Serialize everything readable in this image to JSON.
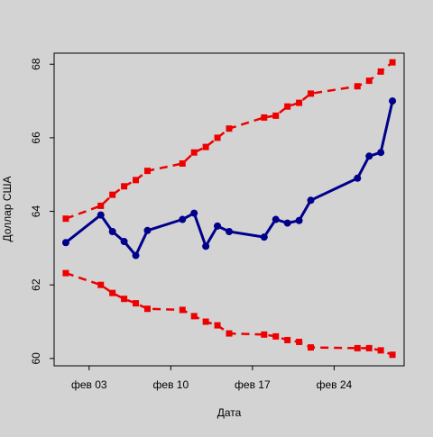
{
  "chart_data": {
    "type": "line",
    "title": "",
    "xlabel": "Дата",
    "ylabel": "Доллар США",
    "x_ticks": [
      "2019-02-03",
      "2019-02-10",
      "2019-02-17",
      "2019-02-24"
    ],
    "x_tick_labels": [
      "фев 03",
      "фев 10",
      "фев 17",
      "фев 24"
    ],
    "xlim": [
      "2019-01-31",
      "2019-03-02"
    ],
    "y_ticks": [
      60,
      62,
      64,
      66,
      68
    ],
    "ylim": [
      59.8,
      68.3
    ],
    "grid": false,
    "x": [
      "2019-02-01",
      "2019-02-04",
      "2019-02-05",
      "2019-02-06",
      "2019-02-07",
      "2019-02-08",
      "2019-02-11",
      "2019-02-12",
      "2019-02-13",
      "2019-02-14",
      "2019-02-15",
      "2019-02-18",
      "2019-02-19",
      "2019-02-20",
      "2019-02-21",
      "2019-02-22",
      "2019-02-26",
      "2019-02-27",
      "2019-02-28",
      "2019-03-01"
    ],
    "series": [
      {
        "role": "main",
        "color": "#00008b",
        "style": "solid",
        "values": [
          63.15,
          63.9,
          63.45,
          63.18,
          62.8,
          63.48,
          63.78,
          63.95,
          63.05,
          63.6,
          63.45,
          63.3,
          63.78,
          63.68,
          63.75,
          64.3,
          64.9,
          65.5,
          65.6,
          67.0
        ]
      },
      {
        "role": "upper",
        "color": "#ee0000",
        "style": "dashed",
        "values": [
          63.8,
          64.15,
          64.45,
          64.68,
          64.85,
          65.1,
          65.3,
          65.6,
          65.75,
          66.0,
          66.25,
          66.55,
          66.6,
          66.85,
          66.95,
          67.2,
          67.4,
          67.55,
          67.8,
          68.05
        ]
      },
      {
        "role": "lower",
        "color": "#ee0000",
        "style": "dashed",
        "values": [
          62.32,
          62.0,
          61.78,
          61.62,
          61.5,
          61.35,
          61.32,
          61.15,
          61.0,
          60.9,
          60.68,
          60.65,
          60.6,
          60.5,
          60.45,
          60.3,
          60.28,
          60.28,
          60.22,
          60.1
        ]
      }
    ]
  }
}
